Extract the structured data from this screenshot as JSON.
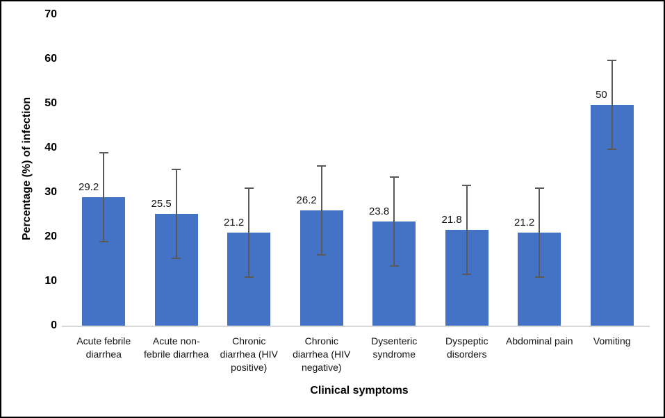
{
  "figure": {
    "background": "#ffffff",
    "border_color": "#000000"
  },
  "chart_data": {
    "type": "bar",
    "title": "",
    "xlabel": "Clinical symptoms",
    "ylabel": "Percentage (%) of infection",
    "categories": [
      "Acute febrile diarrhea",
      "Acute non-febrile diarrhea",
      "Chronic diarrhea (HIV positive)",
      "Chronic diarrhea (HIV negative)",
      "Dysenteric syndrome",
      "Dyspeptic disorders",
      "Abdominal pain",
      "Vomiting"
    ],
    "values": [
      29.2,
      25.5,
      21.2,
      26.2,
      23.8,
      21.8,
      21.2,
      50
    ],
    "data_labels": [
      "29.2",
      "25.5",
      "21.2",
      "26.2",
      "23.8",
      "21.8",
      "21.2",
      "50"
    ],
    "error_bars": [
      10,
      10,
      10,
      10,
      10,
      10,
      10,
      10
    ],
    "ylim": [
      0,
      70
    ],
    "yticks": [
      0,
      10,
      20,
      30,
      40,
      50,
      60,
      70
    ],
    "grid": false,
    "legend": false,
    "bar_color": "#4472C4",
    "error_bar_color": "#595959",
    "axis_line_color": "#D9D9D9"
  }
}
